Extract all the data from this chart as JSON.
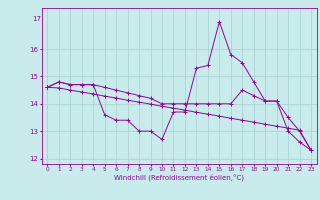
{
  "xlabel": "Windchill (Refroidissement éolien,°C)",
  "background_color": "#c8ecec",
  "grid_color": "#aad4d4",
  "line_color": "#990099",
  "x_hours": [
    0,
    1,
    2,
    3,
    4,
    5,
    6,
    7,
    8,
    9,
    10,
    11,
    12,
    13,
    14,
    15,
    16,
    17,
    18,
    19,
    20,
    21,
    22,
    23
  ],
  "windchill": [
    14.6,
    14.8,
    14.7,
    14.7,
    14.7,
    13.6,
    13.4,
    13.4,
    13.0,
    13.0,
    12.7,
    13.7,
    13.7,
    15.3,
    15.4,
    17.0,
    15.8,
    15.5,
    14.8,
    14.1,
    14.1,
    13.0,
    12.6,
    12.3
  ],
  "temperature": [
    14.6,
    14.8,
    14.7,
    14.7,
    14.7,
    14.6,
    14.5,
    14.4,
    14.3,
    14.2,
    14.0,
    14.0,
    14.0,
    14.0,
    14.0,
    14.0,
    14.0,
    14.5,
    14.3,
    14.1,
    14.1,
    13.5,
    13.0,
    12.3
  ],
  "regression": [
    14.6,
    14.58,
    14.5,
    14.43,
    14.36,
    14.28,
    14.21,
    14.13,
    14.06,
    13.99,
    13.91,
    13.84,
    13.77,
    13.69,
    13.62,
    13.55,
    13.47,
    13.4,
    13.33,
    13.25,
    13.18,
    13.11,
    13.03,
    12.3
  ],
  "ylim": [
    11.8,
    17.5
  ],
  "yticks": [
    12,
    13,
    14,
    15,
    16
  ],
  "ytick_labels": [
    "12",
    "13",
    "14",
    "15",
    "16"
  ],
  "y_top_label": "17",
  "xticks": [
    0,
    1,
    2,
    3,
    4,
    5,
    6,
    7,
    8,
    9,
    10,
    11,
    12,
    13,
    14,
    15,
    16,
    17,
    18,
    19,
    20,
    21,
    22,
    23
  ],
  "xtick_labels": [
    "0",
    "1",
    "2",
    "3",
    "4",
    "5",
    "6",
    "7",
    "8",
    "9",
    "10",
    "11",
    "12",
    "13",
    "14",
    "15",
    "16",
    "17",
    "18",
    "19",
    "20",
    "21",
    "22",
    "23"
  ]
}
